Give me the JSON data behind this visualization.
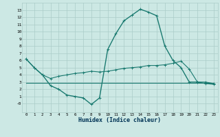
{
  "title": "",
  "xlabel": "Humidex (Indice chaleur)",
  "ylabel": "",
  "bg_color": "#cce8e4",
  "grid_color": "#aaccc8",
  "line_color": "#1a7a70",
  "xlim": [
    -0.5,
    23.5
  ],
  "ylim": [
    -1.2,
    14.0
  ],
  "yticks": [
    0,
    1,
    2,
    3,
    4,
    5,
    6,
    7,
    8,
    9,
    10,
    11,
    12,
    13
  ],
  "ytick_labels": [
    "-0",
    "1",
    "2",
    "3",
    "4",
    "5",
    "6",
    "7",
    "8",
    "9",
    "10",
    "11",
    "12",
    "13"
  ],
  "xticks": [
    0,
    1,
    2,
    3,
    4,
    5,
    6,
    7,
    8,
    9,
    10,
    11,
    12,
    13,
    14,
    15,
    16,
    17,
    18,
    19,
    20,
    21,
    22,
    23
  ],
  "series1_x": [
    0,
    1,
    2,
    3,
    4,
    5,
    6,
    7,
    8,
    9,
    10,
    11,
    12,
    13,
    14,
    15,
    16,
    17,
    18,
    19,
    20,
    21,
    22,
    23
  ],
  "series1_y": [
    6.2,
    5.0,
    4.0,
    3.5,
    3.8,
    4.0,
    4.2,
    4.3,
    4.5,
    4.4,
    4.5,
    4.7,
    4.9,
    5.0,
    5.1,
    5.3,
    5.3,
    5.4,
    5.6,
    5.9,
    4.8,
    3.0,
    3.0,
    2.8
  ],
  "series2_x": [
    0,
    23
  ],
  "series2_y": [
    2.9,
    2.9
  ],
  "series3_x": [
    0,
    1,
    2,
    3,
    4,
    5,
    6,
    7,
    8,
    9,
    10,
    11,
    12,
    13,
    14,
    15,
    16,
    17,
    18,
    19,
    20,
    21,
    22,
    23
  ],
  "series3_y": [
    6.2,
    5.0,
    4.0,
    2.5,
    2.0,
    1.2,
    1.0,
    0.8,
    -0.1,
    0.8,
    7.5,
    9.7,
    11.5,
    12.3,
    13.1,
    12.7,
    12.2,
    8.0,
    6.0,
    5.0,
    3.0,
    3.0,
    2.8,
    2.7
  ]
}
